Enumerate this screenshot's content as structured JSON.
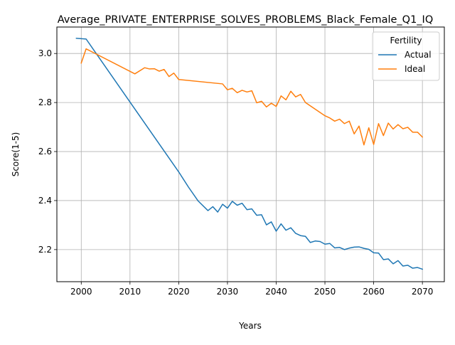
{
  "chart_data": {
    "type": "line",
    "title": "Average_PRIVATE_ENTERPRISE_SOLVES_PROBLEMS_Black_Female_Q1_IQ",
    "xlabel": "Years",
    "ylabel": "Score(1-5)",
    "xlim": [
      1995.0,
      2074.5
    ],
    "ylim": [
      2.069,
      3.108
    ],
    "xticks": [
      2000,
      2010,
      2020,
      2030,
      2040,
      2050,
      2060,
      2070
    ],
    "xtick_labels": [
      "2000",
      "2010",
      "2020",
      "2030",
      "2040",
      "2050",
      "2060",
      "2070"
    ],
    "yticks": [
      2.2,
      2.4,
      2.6,
      2.8,
      3.0
    ],
    "ytick_labels": [
      "2.2",
      "2.4",
      "2.6",
      "2.8",
      "3.0"
    ],
    "grid": true,
    "legend": {
      "title": "Fertility",
      "location": "top-right"
    },
    "series": [
      {
        "name": "Actual",
        "color": "#1f77b4",
        "points": [
          [
            1999,
            3.062
          ],
          [
            2001,
            3.059
          ],
          [
            2010,
            2.802
          ],
          [
            2020,
            2.517
          ],
          [
            2022,
            2.455
          ],
          [
            2024,
            2.398
          ],
          [
            2026,
            2.359
          ],
          [
            2027,
            2.375
          ],
          [
            2028,
            2.353
          ],
          [
            2029,
            2.385
          ],
          [
            2030,
            2.369
          ],
          [
            2031,
            2.397
          ],
          [
            2032,
            2.381
          ],
          [
            2033,
            2.389
          ],
          [
            2034,
            2.363
          ],
          [
            2035,
            2.366
          ],
          [
            2036,
            2.34
          ],
          [
            2037,
            2.342
          ],
          [
            2038,
            2.301
          ],
          [
            2039,
            2.313
          ],
          [
            2040,
            2.275
          ],
          [
            2041,
            2.305
          ],
          [
            2042,
            2.279
          ],
          [
            2043,
            2.289
          ],
          [
            2044,
            2.266
          ],
          [
            2045,
            2.257
          ],
          [
            2046,
            2.254
          ],
          [
            2047,
            2.229
          ],
          [
            2048,
            2.235
          ],
          [
            2049,
            2.233
          ],
          [
            2050,
            2.222
          ],
          [
            2051,
            2.225
          ],
          [
            2052,
            2.207
          ],
          [
            2053,
            2.209
          ],
          [
            2054,
            2.2
          ],
          [
            2055,
            2.206
          ],
          [
            2056,
            2.21
          ],
          [
            2057,
            2.211
          ],
          [
            2058,
            2.205
          ],
          [
            2059,
            2.201
          ],
          [
            2060,
            2.187
          ],
          [
            2061,
            2.186
          ],
          [
            2062,
            2.159
          ],
          [
            2063,
            2.162
          ],
          [
            2064,
            2.142
          ],
          [
            2065,
            2.155
          ],
          [
            2066,
            2.133
          ],
          [
            2067,
            2.136
          ],
          [
            2068,
            2.124
          ],
          [
            2069,
            2.127
          ],
          [
            2070,
            2.12
          ]
        ]
      },
      {
        "name": "Ideal",
        "color": "#ff7f0e",
        "points": [
          [
            2000,
            2.961
          ],
          [
            2001,
            3.019
          ],
          [
            2011,
            2.917
          ],
          [
            2013,
            2.942
          ],
          [
            2014,
            2.937
          ],
          [
            2015,
            2.938
          ],
          [
            2016,
            2.928
          ],
          [
            2017,
            2.935
          ],
          [
            2018,
            2.906
          ],
          [
            2019,
            2.92
          ],
          [
            2020,
            2.894
          ],
          [
            2029,
            2.876
          ],
          [
            2030,
            2.852
          ],
          [
            2031,
            2.858
          ],
          [
            2032,
            2.84
          ],
          [
            2033,
            2.85
          ],
          [
            2034,
            2.843
          ],
          [
            2035,
            2.848
          ],
          [
            2036,
            2.799
          ],
          [
            2037,
            2.805
          ],
          [
            2038,
            2.782
          ],
          [
            2039,
            2.797
          ],
          [
            2040,
            2.784
          ],
          [
            2041,
            2.827
          ],
          [
            2042,
            2.811
          ],
          [
            2043,
            2.846
          ],
          [
            2044,
            2.823
          ],
          [
            2045,
            2.833
          ],
          [
            2046,
            2.8
          ],
          [
            2050,
            2.746
          ],
          [
            2051,
            2.737
          ],
          [
            2052,
            2.724
          ],
          [
            2053,
            2.732
          ],
          [
            2054,
            2.714
          ],
          [
            2055,
            2.724
          ],
          [
            2056,
            2.672
          ],
          [
            2057,
            2.704
          ],
          [
            2058,
            2.627
          ],
          [
            2059,
            2.697
          ],
          [
            2060,
            2.629
          ],
          [
            2061,
            2.714
          ],
          [
            2062,
            2.665
          ],
          [
            2063,
            2.716
          ],
          [
            2064,
            2.692
          ],
          [
            2065,
            2.71
          ],
          [
            2066,
            2.693
          ],
          [
            2067,
            2.699
          ],
          [
            2068,
            2.679
          ],
          [
            2069,
            2.679
          ],
          [
            2070,
            2.659
          ]
        ]
      }
    ]
  }
}
